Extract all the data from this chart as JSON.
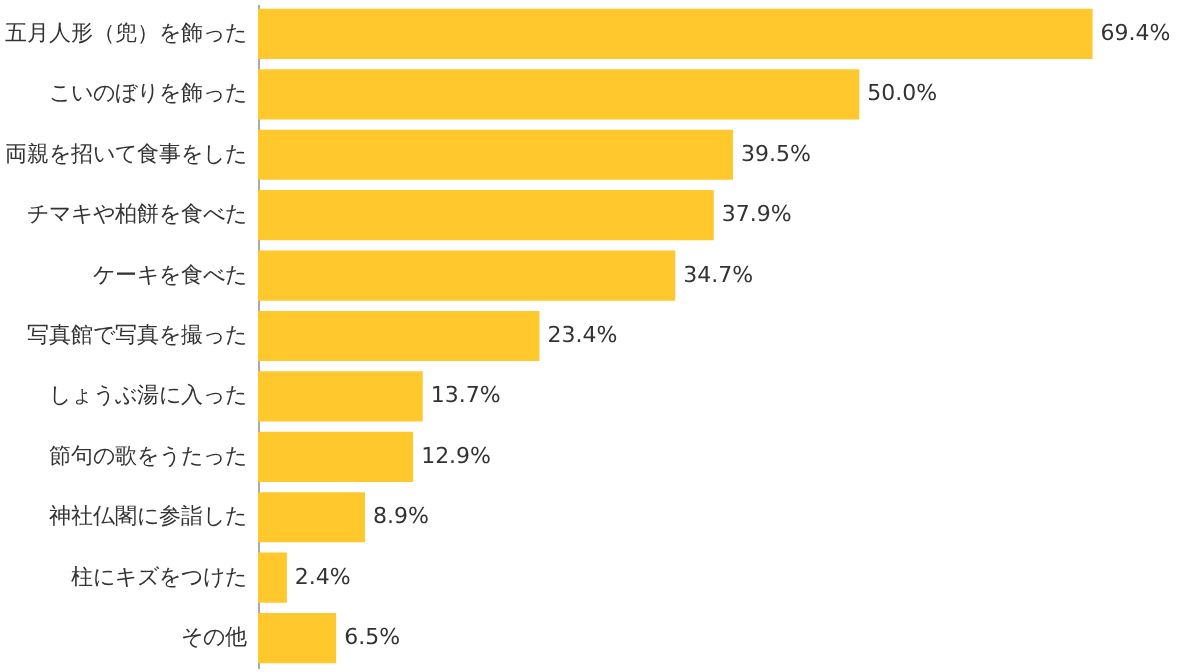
{
  "chart_data": {
    "type": "bar",
    "orientation": "horizontal",
    "categories": [
      "五月人形（兜）を飾った",
      "こいのぼりを飾った",
      "両親を招いて食事をした",
      "チマキや柏餅を食べた",
      "ケーキを食べた",
      "写真館で写真を撮った",
      "しょうぶ湯に入った",
      "節句の歌をうたった",
      "神社仏閣に参詣した",
      "柱にキズをつけた",
      "その他"
    ],
    "values": [
      69.4,
      50.0,
      39.5,
      37.9,
      34.7,
      23.4,
      13.7,
      12.9,
      8.9,
      2.4,
      6.5
    ],
    "value_labels": [
      "69.4%",
      "50.0%",
      "39.5%",
      "37.9%",
      "34.7%",
      "23.4%",
      "13.7%",
      "12.9%",
      "8.9%",
      "2.4%",
      "6.5%"
    ],
    "color": "#ffc82c",
    "xlim": [
      0,
      78
    ]
  }
}
